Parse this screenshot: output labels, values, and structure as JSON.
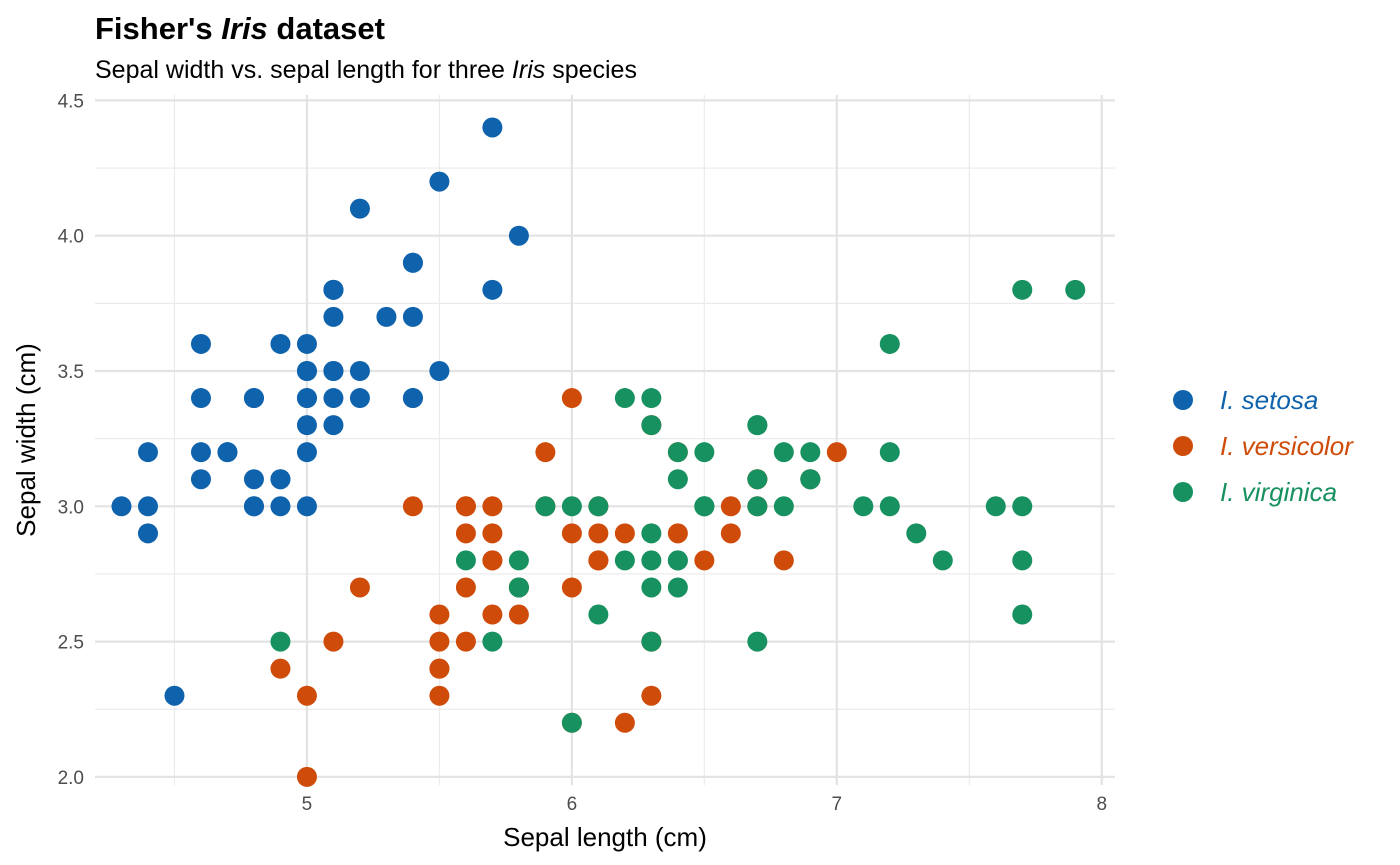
{
  "chart_data": {
    "type": "scatter",
    "title_prefix": "Fisher's ",
    "title_italic": "Iris",
    "title_suffix": " dataset",
    "subtitle_prefix": "Sepal width vs. sepal length for three ",
    "subtitle_italic": "Iris",
    "subtitle_suffix": " species",
    "xlabel": "Sepal length (cm)",
    "ylabel": "Sepal width (cm)",
    "xlim": [
      4.2,
      8.05
    ],
    "ylim": [
      1.97,
      4.52
    ],
    "x_ticks": [
      5,
      6,
      7,
      8
    ],
    "x_tick_labels": [
      "5",
      "6",
      "7",
      "8"
    ],
    "y_ticks": [
      2.0,
      2.5,
      3.0,
      3.5,
      4.0,
      4.5
    ],
    "y_tick_labels": [
      "2.0",
      "2.5",
      "3.0",
      "3.5",
      "4.0",
      "4.5"
    ],
    "grid": true,
    "legend_position": "right",
    "series": [
      {
        "name": "I. setosa",
        "color": "#0F62AC",
        "points": [
          [
            5.1,
            3.5
          ],
          [
            4.9,
            3.0
          ],
          [
            4.7,
            3.2
          ],
          [
            4.6,
            3.1
          ],
          [
            5.0,
            3.6
          ],
          [
            5.4,
            3.9
          ],
          [
            4.6,
            3.4
          ],
          [
            5.0,
            3.4
          ],
          [
            4.4,
            2.9
          ],
          [
            4.9,
            3.1
          ],
          [
            5.4,
            3.7
          ],
          [
            4.8,
            3.4
          ],
          [
            4.8,
            3.0
          ],
          [
            4.3,
            3.0
          ],
          [
            5.8,
            4.0
          ],
          [
            5.7,
            4.4
          ],
          [
            5.4,
            3.9
          ],
          [
            5.1,
            3.5
          ],
          [
            5.7,
            3.8
          ],
          [
            5.1,
            3.8
          ],
          [
            5.4,
            3.4
          ],
          [
            5.1,
            3.7
          ],
          [
            4.6,
            3.6
          ],
          [
            5.1,
            3.3
          ],
          [
            4.8,
            3.4
          ],
          [
            5.0,
            3.0
          ],
          [
            5.0,
            3.4
          ],
          [
            5.2,
            3.5
          ],
          [
            5.2,
            3.4
          ],
          [
            4.7,
            3.2
          ],
          [
            4.8,
            3.1
          ],
          [
            5.4,
            3.4
          ],
          [
            5.2,
            4.1
          ],
          [
            5.5,
            4.2
          ],
          [
            4.9,
            3.1
          ],
          [
            5.0,
            3.2
          ],
          [
            5.5,
            3.5
          ],
          [
            4.9,
            3.6
          ],
          [
            4.4,
            3.0
          ],
          [
            5.1,
            3.4
          ],
          [
            5.0,
            3.5
          ],
          [
            4.5,
            2.3
          ],
          [
            4.4,
            3.2
          ],
          [
            5.0,
            3.5
          ],
          [
            5.1,
            3.8
          ],
          [
            4.8,
            3.0
          ],
          [
            5.1,
            3.8
          ],
          [
            4.6,
            3.2
          ],
          [
            5.3,
            3.7
          ],
          [
            5.0,
            3.3
          ]
        ]
      },
      {
        "name": "I. versicolor",
        "color": "#CF4B0A",
        "points": [
          [
            7.0,
            3.2
          ],
          [
            6.4,
            3.2
          ],
          [
            6.9,
            3.1
          ],
          [
            5.5,
            2.3
          ],
          [
            6.5,
            2.8
          ],
          [
            5.7,
            2.8
          ],
          [
            6.3,
            3.3
          ],
          [
            4.9,
            2.4
          ],
          [
            6.6,
            2.9
          ],
          [
            5.2,
            2.7
          ],
          [
            5.0,
            2.0
          ],
          [
            5.9,
            3.0
          ],
          [
            6.0,
            2.2
          ],
          [
            6.1,
            2.9
          ],
          [
            5.6,
            2.9
          ],
          [
            6.7,
            3.1
          ],
          [
            5.6,
            3.0
          ],
          [
            5.8,
            2.7
          ],
          [
            6.2,
            2.2
          ],
          [
            5.6,
            2.5
          ],
          [
            5.9,
            3.2
          ],
          [
            6.1,
            2.8
          ],
          [
            6.3,
            2.5
          ],
          [
            6.1,
            2.8
          ],
          [
            6.4,
            2.9
          ],
          [
            6.6,
            3.0
          ],
          [
            6.8,
            2.8
          ],
          [
            6.7,
            3.0
          ],
          [
            6.0,
            2.9
          ],
          [
            5.7,
            2.6
          ],
          [
            5.5,
            2.4
          ],
          [
            5.5,
            2.4
          ],
          [
            5.8,
            2.7
          ],
          [
            6.0,
            2.7
          ],
          [
            5.4,
            3.0
          ],
          [
            6.0,
            3.4
          ],
          [
            6.7,
            3.1
          ],
          [
            6.3,
            2.3
          ],
          [
            5.6,
            3.0
          ],
          [
            5.5,
            2.5
          ],
          [
            5.5,
            2.6
          ],
          [
            6.1,
            3.0
          ],
          [
            5.8,
            2.6
          ],
          [
            5.0,
            2.3
          ],
          [
            5.6,
            2.7
          ],
          [
            5.7,
            3.0
          ],
          [
            5.7,
            2.9
          ],
          [
            6.2,
            2.9
          ],
          [
            5.1,
            2.5
          ],
          [
            5.7,
            2.8
          ]
        ]
      },
      {
        "name": "I. virginica",
        "color": "#17915F",
        "points": [
          [
            6.3,
            3.3
          ],
          [
            5.8,
            2.7
          ],
          [
            7.1,
            3.0
          ],
          [
            6.3,
            2.9
          ],
          [
            6.5,
            3.0
          ],
          [
            7.6,
            3.0
          ],
          [
            4.9,
            2.5
          ],
          [
            7.3,
            2.9
          ],
          [
            6.7,
            2.5
          ],
          [
            7.2,
            3.6
          ],
          [
            6.5,
            3.2
          ],
          [
            6.4,
            2.7
          ],
          [
            6.8,
            3.0
          ],
          [
            5.7,
            2.5
          ],
          [
            5.8,
            2.8
          ],
          [
            6.4,
            3.2
          ],
          [
            6.5,
            3.0
          ],
          [
            7.7,
            3.8
          ],
          [
            7.7,
            2.6
          ],
          [
            6.0,
            2.2
          ],
          [
            6.9,
            3.2
          ],
          [
            5.6,
            2.8
          ],
          [
            7.7,
            2.8
          ],
          [
            6.3,
            2.7
          ],
          [
            6.7,
            3.3
          ],
          [
            7.2,
            3.2
          ],
          [
            6.2,
            2.8
          ],
          [
            6.1,
            3.0
          ],
          [
            6.4,
            2.8
          ],
          [
            7.2,
            3.0
          ],
          [
            7.4,
            2.8
          ],
          [
            7.9,
            3.8
          ],
          [
            6.4,
            2.8
          ],
          [
            6.3,
            2.8
          ],
          [
            6.1,
            2.6
          ],
          [
            7.7,
            3.0
          ],
          [
            6.3,
            3.4
          ],
          [
            6.4,
            3.1
          ],
          [
            6.0,
            3.0
          ],
          [
            6.9,
            3.1
          ],
          [
            6.7,
            3.1
          ],
          [
            6.9,
            3.1
          ],
          [
            5.8,
            2.7
          ],
          [
            6.8,
            3.2
          ],
          [
            6.7,
            3.3
          ],
          [
            6.7,
            3.0
          ],
          [
            6.3,
            2.5
          ],
          [
            6.5,
            3.0
          ],
          [
            6.2,
            3.4
          ],
          [
            5.9,
            3.0
          ]
        ]
      }
    ]
  }
}
